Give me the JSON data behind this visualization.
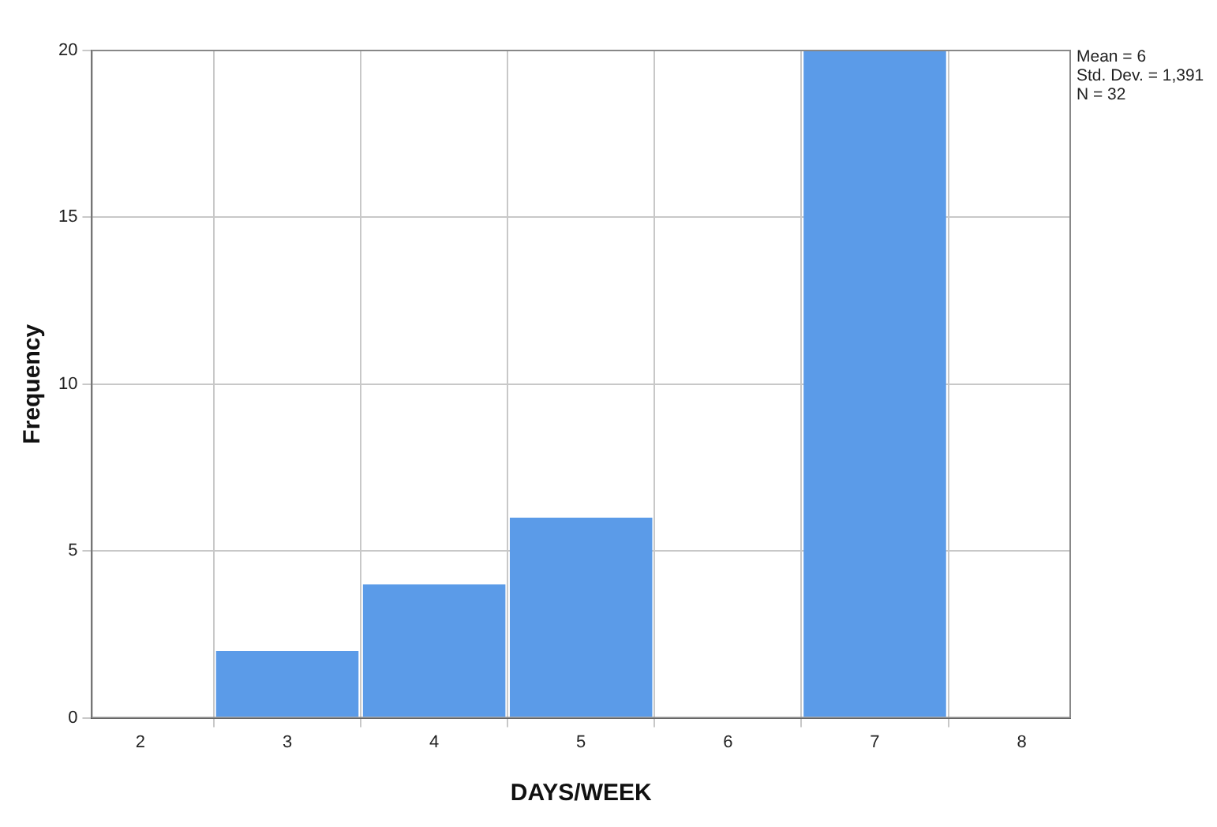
{
  "chart_data": {
    "type": "histogram",
    "xlabel": "DAYS/WEEK",
    "ylabel": "Frequency",
    "bins": [
      2.5,
      3.5,
      4.5,
      5.5,
      6.5,
      7.5
    ],
    "values": [
      2,
      4,
      6,
      0,
      20
    ],
    "color": "#5b9be8",
    "xlim": [
      1.67,
      8.33
    ],
    "xticks": [
      2,
      3,
      4,
      5,
      6,
      7,
      8
    ],
    "ylim": [
      0,
      20
    ],
    "yticks": [
      0,
      5,
      10,
      15,
      20
    ],
    "grid": true,
    "legend": false,
    "annotations": [
      "Mean = 6",
      "Std. Dev. = 1,391",
      "N = 32"
    ]
  }
}
